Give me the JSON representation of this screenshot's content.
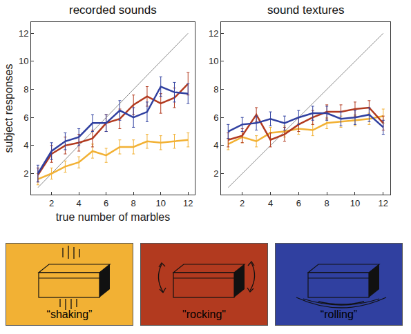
{
  "chart_data": [
    {
      "type": "line",
      "title": "recorded sounds",
      "x_label": "true number of marbles",
      "y_label": "subject responses",
      "x": [
        1,
        2,
        3,
        4,
        5,
        6,
        7,
        8,
        9,
        10,
        11,
        12
      ],
      "series": [
        {
          "name": "“shaking”",
          "color": "#f2b134",
          "values": [
            1.6,
            2.0,
            2.5,
            2.8,
            3.6,
            3.3,
            3.9,
            3.9,
            4.3,
            4.2,
            4.3,
            4.4
          ],
          "errors": [
            0.4,
            0.4,
            0.4,
            0.4,
            0.5,
            0.5,
            0.5,
            0.5,
            0.5,
            0.5,
            0.5,
            0.5
          ]
        },
        {
          "name": "\"rocking\"",
          "color": "#b23a1f",
          "values": [
            1.9,
            3.4,
            4.0,
            4.2,
            4.5,
            5.6,
            5.9,
            6.9,
            7.5,
            7.0,
            7.4,
            8.4
          ],
          "errors": [
            0.5,
            0.6,
            0.6,
            0.6,
            0.6,
            0.6,
            0.7,
            0.7,
            0.7,
            0.7,
            0.7,
            0.8
          ]
        },
        {
          "name": "“rolling”",
          "color": "#3040a0",
          "values": [
            2.0,
            3.6,
            4.3,
            4.6,
            5.6,
            5.6,
            6.5,
            6.0,
            6.4,
            8.2,
            7.8,
            7.7
          ],
          "errors": [
            0.6,
            0.6,
            0.6,
            0.6,
            0.6,
            0.6,
            0.7,
            0.7,
            0.7,
            0.7,
            0.7,
            0.7
          ]
        }
      ],
      "reference_line": {
        "x": [
          1,
          12
        ],
        "values": [
          1,
          12
        ]
      },
      "xlim": [
        0.5,
        12.5
      ],
      "ylim": [
        0.5,
        12.8
      ],
      "xticks": [
        2,
        4,
        6,
        8,
        10,
        12
      ],
      "yticks": [
        2,
        4,
        6,
        8,
        10,
        12
      ],
      "grid": false
    },
    {
      "type": "line",
      "title": "sound textures",
      "x": [
        1,
        2,
        3,
        4,
        5,
        6,
        7,
        8,
        9,
        10,
        11,
        12
      ],
      "series": [
        {
          "name": "“shaking”",
          "color": "#f2b134",
          "values": [
            4.1,
            4.6,
            4.3,
            4.9,
            5.0,
            5.2,
            5.1,
            5.6,
            5.7,
            5.8,
            5.9,
            6.1
          ],
          "errors": [
            0.4,
            0.4,
            0.4,
            0.4,
            0.4,
            0.4,
            0.4,
            0.4,
            0.4,
            0.4,
            0.4,
            0.5
          ]
        },
        {
          "name": "\"rocking\"",
          "color": "#b23a1f",
          "values": [
            4.4,
            4.7,
            6.2,
            4.4,
            4.8,
            5.5,
            6.0,
            6.4,
            6.4,
            6.6,
            6.7,
            5.6
          ],
          "errors": [
            0.5,
            0.5,
            0.5,
            0.5,
            0.5,
            0.5,
            0.5,
            0.5,
            0.5,
            0.5,
            0.5,
            0.5
          ]
        },
        {
          "name": "“rolling”",
          "color": "#3040a0",
          "values": [
            5.0,
            5.5,
            5.6,
            5.9,
            5.6,
            6.0,
            6.3,
            6.3,
            5.9,
            6.0,
            6.2,
            5.3
          ],
          "errors": [
            0.5,
            0.5,
            0.5,
            0.5,
            0.5,
            0.5,
            0.5,
            0.5,
            0.5,
            0.5,
            0.5,
            0.5
          ]
        }
      ],
      "reference_line": {
        "x": [
          1,
          12
        ],
        "values": [
          1,
          12
        ]
      },
      "xlim": [
        0.5,
        12.5
      ],
      "ylim": [
        0.5,
        12.8
      ],
      "xticks": [
        2,
        4,
        6,
        8,
        10,
        12
      ],
      "yticks": [
        2,
        4,
        6,
        8,
        10,
        12
      ],
      "grid": false
    }
  ]
}
